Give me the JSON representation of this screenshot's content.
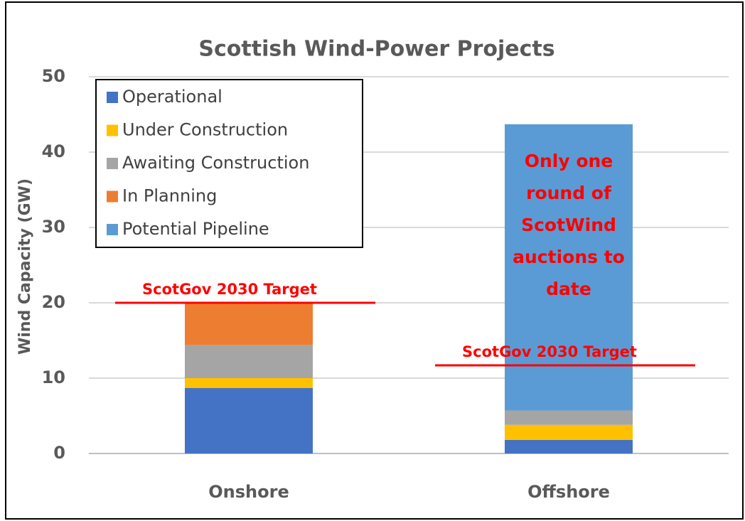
{
  "chart_data": {
    "type": "stacked_bar",
    "title": "Scottish Wind-Power Projects",
    "y_label": "Wind Capacity (GW)",
    "categories": [
      "Onshore",
      "Offshore"
    ],
    "series": [
      {
        "name": "Operational",
        "color": "#4472c4",
        "values": [
          8.7,
          1.8
        ]
      },
      {
        "name": "Under Construction",
        "color": "#ffc000",
        "values": [
          1.3,
          2.0
        ]
      },
      {
        "name": "Awaiting Construction",
        "color": "#a5a5a5",
        "values": [
          4.4,
          1.9
        ]
      },
      {
        "name": "In Planning",
        "color": "#ed7d31",
        "values": [
          5.6,
          0
        ]
      },
      {
        "name": "Potential Pipeline",
        "color": "#5b9bd5",
        "values": [
          0,
          38.0
        ]
      }
    ],
    "ylim": [
      0,
      50
    ],
    "yticks": [
      0,
      10,
      20,
      30,
      40,
      50
    ],
    "grid": true,
    "legend": "upper left",
    "targets": [
      {
        "label": "ScotGov 2030 Target",
        "value": 20,
        "category": 0,
        "color": "#ff0000"
      },
      {
        "label": "ScotGov 2030 Target",
        "value": 11.7,
        "category": 1,
        "color": "#ff0000"
      }
    ],
    "annotation": {
      "lines": [
        "Only one",
        "round of",
        "ScotWind",
        "auctions to",
        "date"
      ],
      "category": 1,
      "color": "#ff0000"
    }
  }
}
